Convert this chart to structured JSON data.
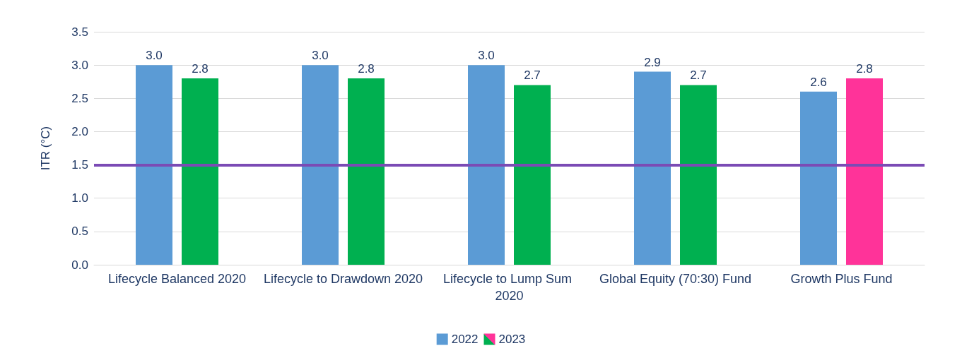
{
  "chart_data": {
    "type": "bar",
    "ylabel": "ITR (°C)",
    "categories": [
      "Lifecycle Balanced 2020",
      "Lifecycle to Drawdown 2020",
      "Lifecycle to Lump Sum 2020",
      "Global Equity (70:30) Fund",
      "Growth Plus Fund"
    ],
    "series": [
      {
        "name": "2022",
        "color": "#5b9bd5",
        "values": [
          3.0,
          3.0,
          3.0,
          2.9,
          2.6
        ],
        "value_labels": [
          "3.0",
          "3.0",
          "3.0",
          "2.9",
          "2.6"
        ]
      },
      {
        "name": "2023",
        "colors": [
          "#00b050",
          "#00b050",
          "#00b050",
          "#00b050",
          "#ff3399"
        ],
        "values": [
          2.8,
          2.8,
          2.7,
          2.7,
          2.8
        ],
        "value_labels": [
          "2.8",
          "2.8",
          "2.7",
          "2.7",
          "2.8"
        ]
      }
    ],
    "ylim": [
      0,
      3.5
    ],
    "yticks": [
      {
        "value": 0,
        "label": "0.0"
      },
      {
        "value": 0.5,
        "label": "0.5"
      },
      {
        "value": 1,
        "label": "1.0"
      },
      {
        "value": 1.5,
        "label": "1.5"
      },
      {
        "value": 2,
        "label": "2.0"
      },
      {
        "value": 2.5,
        "label": "2.5"
      },
      {
        "value": 3,
        "label": "3.0"
      },
      {
        "value": 3.5,
        "label": "3.5"
      }
    ],
    "ref_lines": [
      {
        "axis": "y",
        "value": 1.5,
        "color": "#7b4bb5"
      }
    ],
    "grid": "y",
    "legend": "bottom"
  }
}
